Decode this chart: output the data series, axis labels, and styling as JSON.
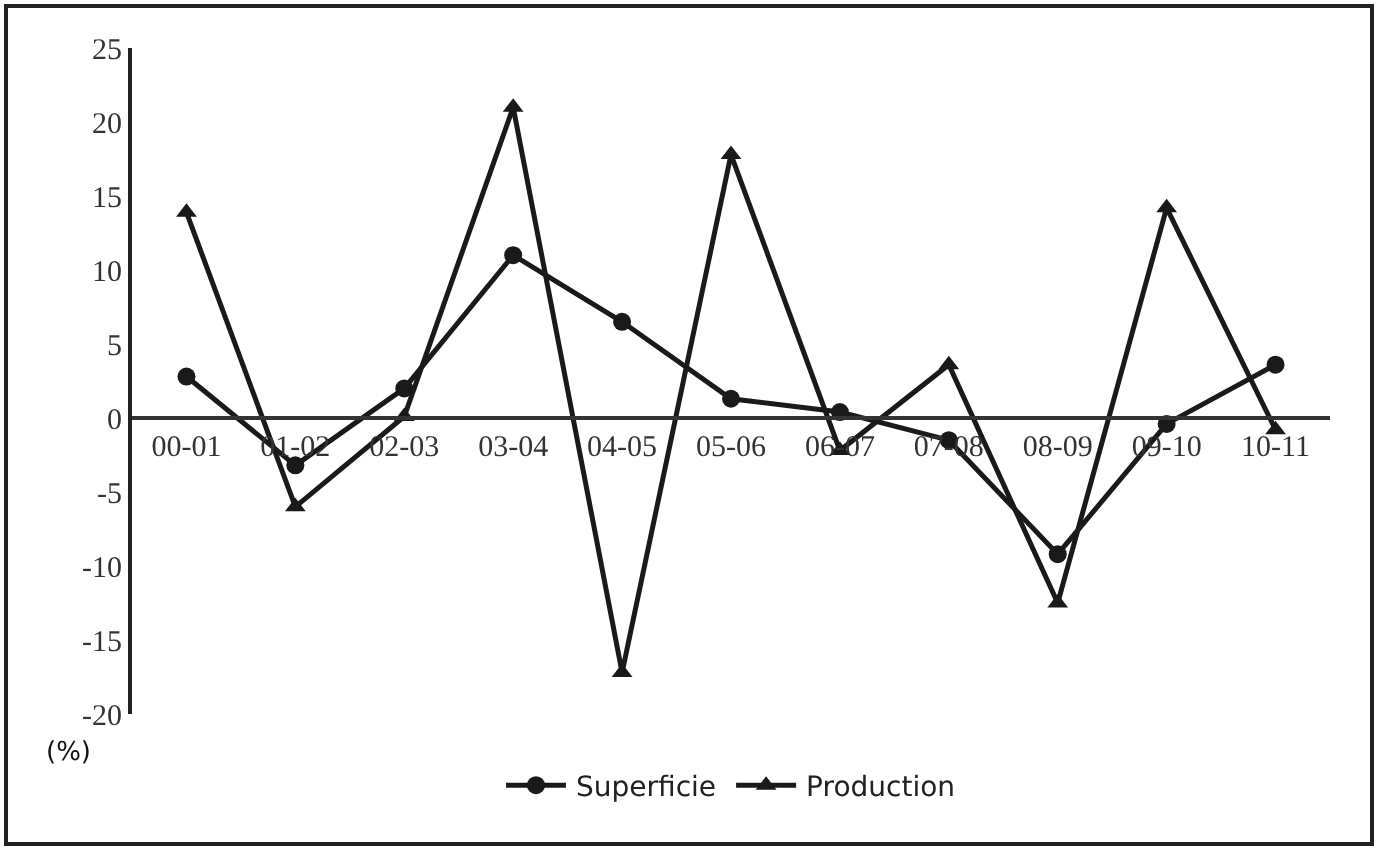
{
  "chart_data": {
    "type": "line",
    "ylabel": "(%)",
    "categories": [
      "00-01",
      "01-02",
      "02-03",
      "03-04",
      "04-05",
      "05-06",
      "06-07",
      "07-08",
      "08-09",
      "09-10",
      "10-11"
    ],
    "series": [
      {
        "name": "Superficie",
        "color": "#1a1a1a",
        "marker": "circle",
        "values": [
          2.8,
          -3.2,
          2,
          11,
          6.5,
          1.3,
          0.4,
          -1.5,
          -9.2,
          -0.4,
          3.6
        ]
      },
      {
        "name": "Production",
        "color": "#1a1a1a",
        "marker": "triangle",
        "values": [
          13.9,
          -6,
          0.1,
          21,
          -17.2,
          17.8,
          -2.2,
          3.6,
          -12.5,
          14.2,
          -0.8
        ]
      }
    ],
    "ylim": [
      -20,
      25
    ],
    "yticks": [
      -20,
      -15,
      -10,
      -5,
      0,
      5,
      10,
      15,
      20,
      25
    ],
    "grid": false,
    "legend": "bottom",
    "line_style": "solid"
  }
}
